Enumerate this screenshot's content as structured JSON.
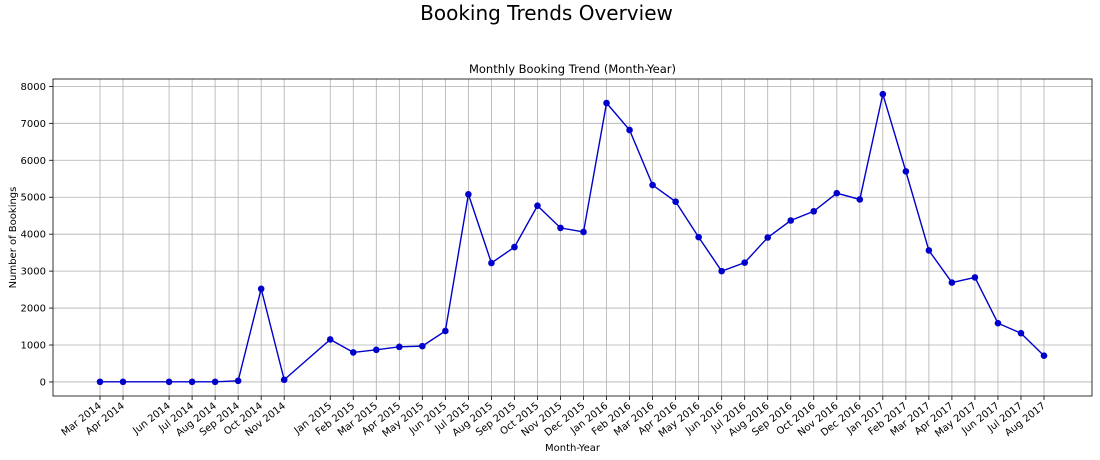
{
  "suptitle": "Booking Trends Overview",
  "chart_data": {
    "type": "line",
    "title": "Monthly Booking Trend (Month-Year)",
    "xlabel": "Month-Year",
    "ylabel": "Number of Bookings",
    "ylim": [
      -380,
      8200
    ],
    "yticks": [
      0,
      1000,
      2000,
      3000,
      4000,
      5000,
      6000,
      7000,
      8000
    ],
    "grid": true,
    "line_color": "#0000cc",
    "marker_color": "#0000cc",
    "categories": [
      "Mar 2014",
      "Apr 2014",
      "Jun 2014",
      "Jul 2014",
      "Aug 2014",
      "Sep 2014",
      "Oct 2014",
      "Nov 2014",
      "Jan 2015",
      "Feb 2015",
      "Mar 2015",
      "Apr 2015",
      "May 2015",
      "Jun 2015",
      "Jul 2015",
      "Aug 2015",
      "Sep 2015",
      "Oct 2015",
      "Nov 2015",
      "Dec 2015",
      "Jan 2016",
      "Feb 2016",
      "Mar 2016",
      "Apr 2016",
      "May 2016",
      "Jun 2016",
      "Jul 2016",
      "Aug 2016",
      "Sep 2016",
      "Oct 2016",
      "Nov 2016",
      "Dec 2016",
      "Jan 2017",
      "Feb 2017",
      "Mar 2017",
      "Apr 2017",
      "May 2017",
      "Jun 2017",
      "Jul 2017",
      "Aug 2017"
    ],
    "month_index": [
      2,
      3,
      5,
      6,
      7,
      8,
      9,
      10,
      12,
      13,
      14,
      15,
      16,
      17,
      18,
      19,
      20,
      21,
      22,
      23,
      24,
      25,
      26,
      27,
      28,
      29,
      30,
      31,
      32,
      33,
      34,
      35,
      36,
      37,
      38,
      39,
      40,
      41,
      42,
      43
    ],
    "values": [
      5,
      5,
      5,
      5,
      5,
      30,
      2520,
      60,
      1150,
      800,
      870,
      950,
      970,
      1380,
      5080,
      3220,
      3650,
      4770,
      4170,
      4060,
      7550,
      6820,
      5330,
      4880,
      3920,
      3000,
      3230,
      3910,
      4370,
      4620,
      5110,
      4940,
      7790,
      5700,
      3560,
      2690,
      2830,
      1590,
      1320,
      710
    ]
  }
}
